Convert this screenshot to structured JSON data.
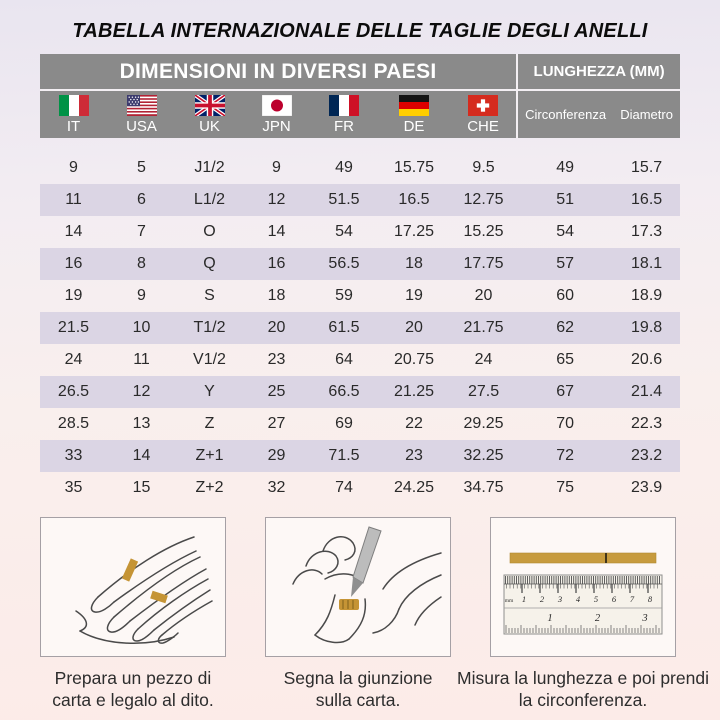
{
  "title": "TABELLA INTERNAZIONALE DELLE TAGLIE DEGLI ANELLI",
  "table": {
    "header": {
      "countries_label": "DIMENSIONI IN DIVERSI PAESI",
      "length_label": "LUNGHEZZA (MM)",
      "circumference_label": "Circonferenza",
      "diameter_label": "Diametro"
    },
    "country_columns": [
      {
        "code": "IT",
        "label": "IT"
      },
      {
        "code": "USA",
        "label": "USA"
      },
      {
        "code": "UK",
        "label": "UK"
      },
      {
        "code": "JPN",
        "label": "JPN"
      },
      {
        "code": "FR",
        "label": "FR"
      },
      {
        "code": "DE",
        "label": "DE"
      },
      {
        "code": "CHE",
        "label": "CHE"
      }
    ],
    "rows": [
      [
        "9",
        "5",
        "J1/2",
        "9",
        "49",
        "15.75",
        "9.5",
        "49",
        "15.7"
      ],
      [
        "11",
        "6",
        "L1/2",
        "12",
        "51.5",
        "16.5",
        "12.75",
        "51",
        "16.5"
      ],
      [
        "14",
        "7",
        "O",
        "14",
        "54",
        "17.25",
        "15.25",
        "54",
        "17.3"
      ],
      [
        "16",
        "8",
        "Q",
        "16",
        "56.5",
        "18",
        "17.75",
        "57",
        "18.1"
      ],
      [
        "19",
        "9",
        "S",
        "18",
        "59",
        "19",
        "20",
        "60",
        "18.9"
      ],
      [
        "21.5",
        "10",
        "T1/2",
        "20",
        "61.5",
        "20",
        "21.75",
        "62",
        "19.8"
      ],
      [
        "24",
        "11",
        "V1/2",
        "23",
        "64",
        "20.75",
        "24",
        "65",
        "20.6"
      ],
      [
        "26.5",
        "12",
        "Y",
        "25",
        "66.5",
        "21.25",
        "27.5",
        "67",
        "21.4"
      ],
      [
        "28.5",
        "13",
        "Z",
        "27",
        "69",
        "22",
        "29.25",
        "70",
        "22.3"
      ],
      [
        "33",
        "14",
        "Z+1",
        "29",
        "71.5",
        "23",
        "32.25",
        "72",
        "23.2"
      ],
      [
        "35",
        "15",
        "Z+2",
        "32",
        "74",
        "24.25",
        "34.75",
        "75",
        "23.9"
      ]
    ]
  },
  "instructions": [
    {
      "caption": "Prepara un pezzo di carta e legalo al dito.",
      "illustration": "hand-with-paper-strip"
    },
    {
      "caption": "Segna la giunzione sulla carta.",
      "illustration": "pen-marking-paper"
    },
    {
      "caption": "Misura la lunghezza e poi prendi la circonferenza.",
      "illustration": "ruler-measurement"
    }
  ],
  "ruler": {
    "unit_top": "mm",
    "top_numbers": [
      "1",
      "2",
      "3",
      "4",
      "5",
      "6",
      "7",
      "8"
    ],
    "bottom_numbers": [
      "1",
      "2",
      "3"
    ]
  },
  "colors": {
    "header_gray": "#8a8a8a",
    "row_stripe": "#dbd5e4",
    "paper_gold": "#c59a37",
    "text_dark": "#2a2a2a"
  }
}
